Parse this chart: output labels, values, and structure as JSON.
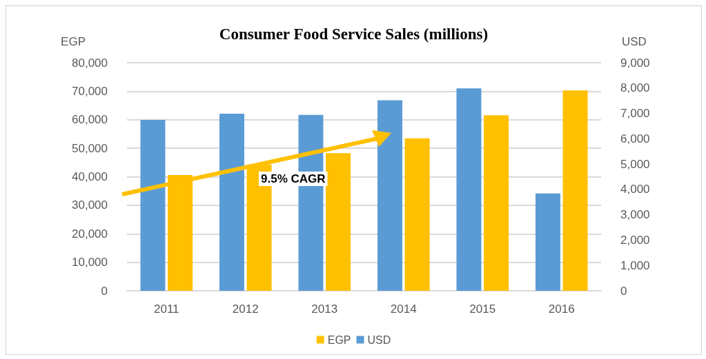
{
  "chart_data": {
    "type": "bar",
    "title": "Consumer Food Service Sales (millions)",
    "ylabel": "EGP",
    "y2label": "USD",
    "categories": [
      "2011",
      "2012",
      "2013",
      "2014",
      "2015",
      "2016"
    ],
    "series": [
      {
        "name": "USD",
        "color": "#5b9bd5",
        "axis": "y2",
        "values": [
          6740,
          6990,
          6940,
          7520,
          7990,
          3840
        ]
      },
      {
        "name": "EGP",
        "color": "#ffc000",
        "values": [
          40600,
          44300,
          48300,
          53500,
          61600,
          70300
        ]
      }
    ],
    "ylim": [
      0,
      80000
    ],
    "yticks": [
      0,
      {
        "value": 10000,
        "label": "10,000"
      },
      {
        "value": 20000,
        "label": "20,000"
      },
      {
        "value": 30000,
        "label": "30,000"
      },
      {
        "value": 40000,
        "label": "40,000"
      },
      {
        "value": 50000,
        "label": "50,000"
      },
      {
        "value": 60000,
        "label": "60,000"
      },
      {
        "value": 70000,
        "label": "70,000"
      },
      {
        "value": 80000,
        "label": "80,000"
      }
    ],
    "y2lim": [
      0,
      9000
    ],
    "y2ticks": [
      0,
      {
        "value": 1000,
        "label": "1,000"
      },
      {
        "value": 2000,
        "label": "2,000"
      },
      {
        "value": 3000,
        "label": "3,000"
      },
      {
        "value": 4000,
        "label": "4,000"
      },
      {
        "value": 5000,
        "label": "5,000"
      },
      {
        "value": 6000,
        "label": "6,000"
      },
      {
        "value": 7000,
        "label": "7,000"
      },
      {
        "value": 8000,
        "label": "8,000"
      },
      {
        "value": 9000,
        "label": "9,000"
      }
    ],
    "annotations": [
      "9.5% CAGR"
    ],
    "grid": "y",
    "legend": "bottom"
  }
}
